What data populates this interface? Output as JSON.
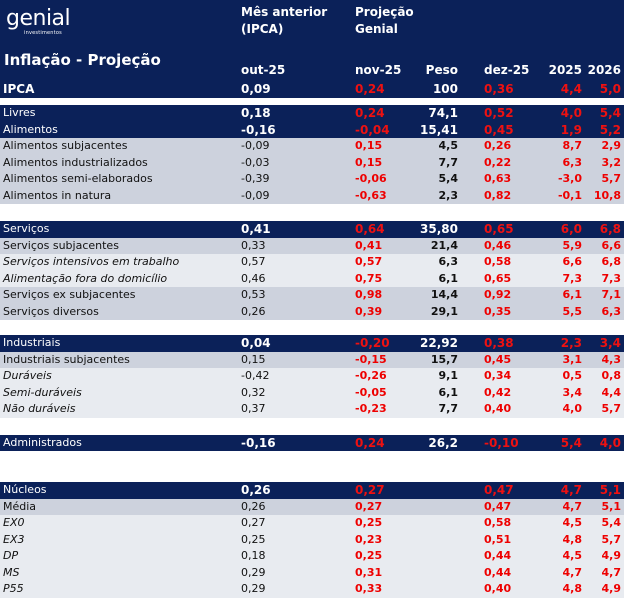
{
  "brand": {
    "name": "genial",
    "sub": "investimentos"
  },
  "title": "Inflação - Projeção",
  "headers": {
    "prev_group_line1": "Mês anterior",
    "prev_group_line2": "(IPCA)",
    "proj_group_line1": "Projeção",
    "proj_group_line2": "Genial",
    "prev_month": "out-25",
    "nov": "nov-25",
    "peso": "Peso",
    "dez": "dez-25",
    "y2025": "2025",
    "y2026": "2026"
  },
  "ipca": {
    "label": "IPCA",
    "prev": "0,09",
    "nov": "0,24",
    "peso": "100",
    "dez": "0,36",
    "y2025": "4,4",
    "y2026": "5,0"
  },
  "colors": {
    "navy": "#0b2159",
    "projection_red": "#ee0000",
    "row_gray": "#cdd2dd",
    "row_light": "#e8ebf0"
  },
  "rows": [
    {
      "label": "Livres",
      "prev": "0,18",
      "nov": "0,24",
      "peso": "74,1",
      "dez": "0,52",
      "y2025": "4,0",
      "y2026": "5,4",
      "style": "navy",
      "italic": false
    },
    {
      "label": "Alimentos",
      "prev": "-0,16",
      "nov": "-0,04",
      "peso": "15,41",
      "dez": "0,45",
      "y2025": "1,9",
      "y2026": "5,2",
      "style": "navy",
      "italic": false
    },
    {
      "label": "Alimentos subjacentes",
      "prev": "-0,09",
      "nov": "0,15",
      "peso": "4,5",
      "dez": "0,26",
      "y2025": "8,7",
      "y2026": "2,9",
      "style": "gray",
      "italic": false
    },
    {
      "label": "Alimentos industrializados",
      "prev": "-0,03",
      "nov": "0,15",
      "peso": "7,7",
      "dez": "0,22",
      "y2025": "6,3",
      "y2026": "3,2",
      "style": "gray",
      "italic": false
    },
    {
      "label": "Alimentos semi-elaborados",
      "prev": "-0,39",
      "nov": "-0,06",
      "peso": "5,4",
      "dez": "0,63",
      "y2025": "-3,0",
      "y2026": "5,7",
      "style": "gray",
      "italic": false
    },
    {
      "label": "Alimentos in natura",
      "prev": "-0,09",
      "nov": "-0,63",
      "peso": "2,3",
      "dez": "0,82",
      "y2025": "-0,1",
      "y2026": "10,8",
      "style": "gray",
      "italic": false
    },
    {
      "label": "Serviços",
      "prev": "0,41",
      "nov": "0,64",
      "peso": "35,80",
      "dez": "0,65",
      "y2025": "6,0",
      "y2026": "6,8",
      "style": "navy",
      "italic": false
    },
    {
      "label": "Serviços subjacentes",
      "prev": "0,33",
      "nov": "0,41",
      "peso": "21,4",
      "dez": "0,46",
      "y2025": "5,9",
      "y2026": "6,6",
      "style": "gray",
      "italic": false
    },
    {
      "label": "Serviços intensivos em trabalho",
      "prev": "0,57",
      "nov": "0,57",
      "peso": "6,3",
      "dez": "0,58",
      "y2025": "6,6",
      "y2026": "6,8",
      "style": "light",
      "italic": true
    },
    {
      "label": "Alimentação fora do domicílio",
      "prev": "0,46",
      "nov": "0,75",
      "peso": "6,1",
      "dez": "0,65",
      "y2025": "7,3",
      "y2026": "7,3",
      "style": "light",
      "italic": true
    },
    {
      "label": "Serviços ex subjacentes",
      "prev": "0,53",
      "nov": "0,98",
      "peso": "14,4",
      "dez": "0,92",
      "y2025": "6,1",
      "y2026": "7,1",
      "style": "gray",
      "italic": false
    },
    {
      "label": "Serviços diversos",
      "prev": "0,26",
      "nov": "0,39",
      "peso": "29,1",
      "dez": "0,35",
      "y2025": "5,5",
      "y2026": "6,3",
      "style": "gray",
      "italic": false
    },
    {
      "label": "Industriais",
      "prev": "0,04",
      "nov": "-0,20",
      "peso": "22,92",
      "dez": "0,38",
      "y2025": "2,3",
      "y2026": "3,4",
      "style": "navy",
      "italic": false
    },
    {
      "label": "Industriais subjacentes",
      "prev": "0,15",
      "nov": "-0,15",
      "peso": "15,7",
      "dez": "0,45",
      "y2025": "3,1",
      "y2026": "4,3",
      "style": "gray",
      "italic": false
    },
    {
      "label": "Duráveis",
      "prev": "-0,42",
      "nov": "-0,26",
      "peso": "9,1",
      "dez": "0,34",
      "y2025": "0,5",
      "y2026": "0,8",
      "style": "light",
      "italic": true
    },
    {
      "label": "Semi-duráveis",
      "prev": "0,32",
      "nov": "-0,05",
      "peso": "6,1",
      "dez": "0,42",
      "y2025": "3,4",
      "y2026": "4,4",
      "style": "light",
      "italic": true
    },
    {
      "label": "Não duráveis",
      "prev": "0,37",
      "nov": "-0,23",
      "peso": "7,7",
      "dez": "0,40",
      "y2025": "4,0",
      "y2026": "5,7",
      "style": "light",
      "italic": true
    },
    {
      "label": "Administrados",
      "prev": "-0,16",
      "nov": "0,24",
      "peso": "26,2",
      "dez": "-0,10",
      "y2025": "5,4",
      "y2026": "4,0",
      "style": "navy",
      "italic": false
    },
    {
      "label": "Núcleos",
      "prev": "0,26",
      "nov": "0,27",
      "peso": "",
      "dez": "0,47",
      "y2025": "4,7",
      "y2026": "5,1",
      "style": "navy",
      "italic": false
    },
    {
      "label": "Média",
      "prev": "0,26",
      "nov": "0,27",
      "peso": "",
      "dez": "0,47",
      "y2025": "4,7",
      "y2026": "5,1",
      "style": "gray",
      "italic": false
    },
    {
      "label": "EX0",
      "prev": "0,27",
      "nov": "0,25",
      "peso": "",
      "dez": "0,58",
      "y2025": "4,5",
      "y2026": "5,4",
      "style": "light",
      "italic": true
    },
    {
      "label": "EX3",
      "prev": "0,25",
      "nov": "0,23",
      "peso": "",
      "dez": "0,51",
      "y2025": "4,8",
      "y2026": "5,7",
      "style": "light",
      "italic": true
    },
    {
      "label": "DP",
      "prev": "0,18",
      "nov": "0,25",
      "peso": "",
      "dez": "0,44",
      "y2025": "4,5",
      "y2026": "4,9",
      "style": "light",
      "italic": true
    },
    {
      "label": "MS",
      "prev": "0,29",
      "nov": "0,31",
      "peso": "",
      "dez": "0,44",
      "y2025": "4,7",
      "y2026": "4,7",
      "style": "light",
      "italic": true
    },
    {
      "label": "P55",
      "prev": "0,29",
      "nov": "0,33",
      "peso": "",
      "dez": "0,40",
      "y2025": "4,8",
      "y2026": "4,9",
      "style": "light",
      "italic": true
    }
  ]
}
